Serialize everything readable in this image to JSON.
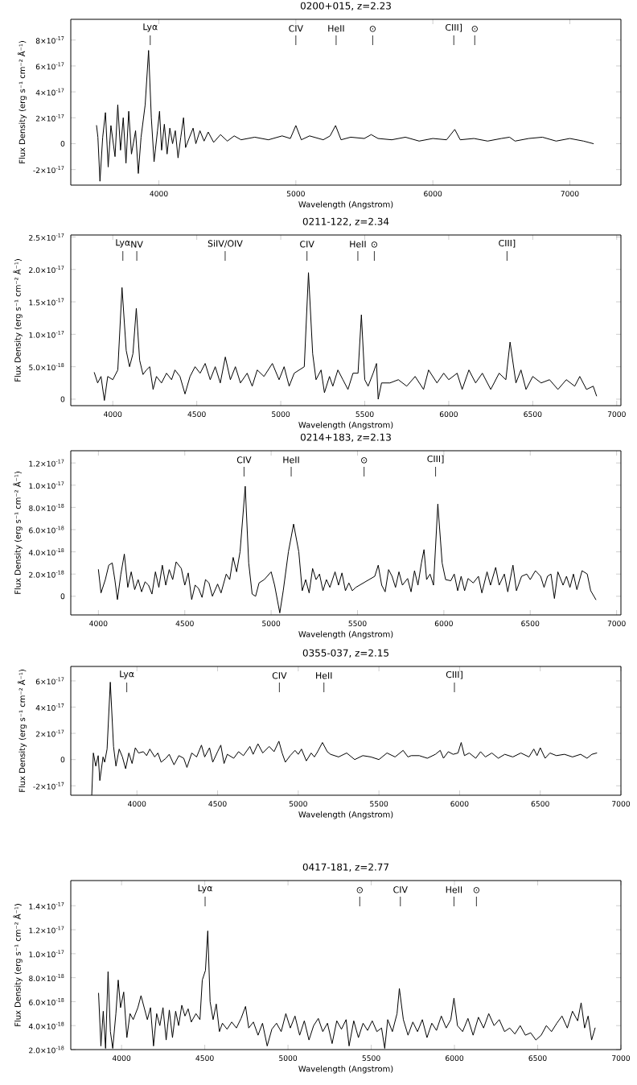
{
  "chart_data": [
    {
      "type": "line",
      "title": "0200+015, z=2.23",
      "xlabel": "Wavelength (Angstrom)",
      "ylabel": "Flux Density (erg s⁻¹ cm⁻² Å⁻¹)",
      "color": "#000000",
      "x": [
        3545,
        3555,
        3570,
        3590,
        3610,
        3630,
        3650,
        3680,
        3700,
        3720,
        3740,
        3760,
        3780,
        3800,
        3830,
        3850,
        3870,
        3900,
        3925,
        3945,
        3965,
        3990,
        4005,
        4020,
        4040,
        4060,
        4080,
        4100,
        4120,
        4140,
        4160,
        4180,
        4195,
        4220,
        4250,
        4270,
        4300,
        4330,
        4360,
        4400,
        4450,
        4500,
        4550,
        4600,
        4700,
        4800,
        4900,
        4960,
        5000,
        5040,
        5100,
        5200,
        5250,
        5290,
        5330,
        5400,
        5500,
        5550,
        5600,
        5700,
        5800,
        5900,
        6000,
        6100,
        6160,
        6200,
        6300,
        6400,
        6500,
        6560,
        6600,
        6700,
        6800,
        6900,
        7000,
        7100,
        7172
      ],
      "values": [
        1.4e-17,
        5e-18,
        -2.9e-17,
        5e-18,
        2.4e-17,
        -1.8e-17,
        1.4e-17,
        -1e-17,
        3e-17,
        -5e-18,
        2e-17,
        -1.5e-17,
        2.5e-17,
        -8e-18,
        1e-17,
        -2.3e-17,
        5e-18,
        3e-17,
        7.2e-17,
        2e-17,
        -1.4e-17,
        1e-17,
        2.5e-17,
        -5e-18,
        1.5e-17,
        -8e-18,
        1.2e-17,
        0.0,
        1e-17,
        -1.1e-17,
        5e-18,
        2e-17,
        -3e-18,
        4e-18,
        1.2e-17,
        0.0,
        1e-17,
        2e-18,
        9e-18,
        1e-18,
        7e-18,
        2e-18,
        6e-18,
        3e-18,
        5e-18,
        3e-18,
        6e-18,
        4e-18,
        1.4e-17,
        3e-18,
        6e-18,
        3e-18,
        6e-18,
        1.4e-17,
        3e-18,
        5e-18,
        4e-18,
        7e-18,
        4e-18,
        3e-18,
        5e-18,
        2e-18,
        4e-18,
        3e-18,
        1.1e-17,
        3e-18,
        4e-18,
        2e-18,
        4e-18,
        5e-18,
        2e-18,
        4e-18,
        5e-18,
        2e-18,
        4e-18,
        2e-18,
        0.0
      ],
      "xlim": [
        3357,
        7373
      ],
      "ylim": [
        -3.2e-17,
        9.6e-17
      ],
      "xticks": [
        4000,
        5000,
        6000,
        7000
      ],
      "yticks": [
        {
          "value": -2e-17,
          "label": "-2×10$^{-17}$"
        },
        0,
        {
          "value": 2e-17,
          "label": "2×10$^{-17}$"
        },
        {
          "value": 4e-17,
          "label": "4×10$^{-17}$"
        },
        {
          "value": 6e-17,
          "label": "6×10$^{-17}$"
        },
        {
          "value": 8e-17,
          "label": "8×10$^{-17}$"
        }
      ],
      "ref_lines": [
        {
          "axis": "x",
          "value": 3937,
          "label": "Lyα"
        },
        {
          "axis": "x",
          "value": 5000,
          "label": "CIV"
        },
        {
          "axis": "x",
          "value": 5294,
          "label": "HeII"
        },
        {
          "axis": "x",
          "value": 5561,
          "label": "⊙"
        },
        {
          "axis": "x",
          "value": 6153,
          "label": "CIII]"
        },
        {
          "axis": "x",
          "value": 6306,
          "label": "⊙"
        }
      ]
    },
    {
      "type": "line",
      "title": "0211-122, z=2.34",
      "xlabel": "Wavelength (Angstrom)",
      "ylabel": "Flux Density (erg s⁻¹ cm⁻² Å⁻¹)",
      "color": "#000000",
      "x": [
        3890,
        3910,
        3930,
        3950,
        3970,
        4000,
        4030,
        4055,
        4080,
        4100,
        4120,
        4140,
        4160,
        4180,
        4200,
        4220,
        4240,
        4260,
        4290,
        4320,
        4350,
        4370,
        4400,
        4430,
        4460,
        4490,
        4520,
        4550,
        4580,
        4610,
        4640,
        4670,
        4700,
        4730,
        4760,
        4800,
        4830,
        4860,
        4900,
        4950,
        4990,
        5020,
        5050,
        5080,
        5110,
        5140,
        5165,
        5190,
        5210,
        5240,
        5260,
        5290,
        5310,
        5340,
        5370,
        5400,
        5430,
        5460,
        5480,
        5500,
        5520,
        5550,
        5570,
        5580,
        5600,
        5650,
        5700,
        5750,
        5800,
        5850,
        5880,
        5930,
        5970,
        6000,
        6050,
        6080,
        6120,
        6160,
        6200,
        6250,
        6300,
        6340,
        6365,
        6400,
        6430,
        6460,
        6500,
        6550,
        6600,
        6650,
        6700,
        6750,
        6780,
        6820,
        6860,
        6880
      ],
      "values": [
        4.1e-18,
        2.5e-18,
        3.5e-18,
        -2e-19,
        3.5e-18,
        3e-18,
        4.5e-18,
        1.72e-17,
        7.5e-18,
        5e-18,
        7e-18,
        1.4e-17,
        6e-18,
        3.8e-18,
        4.5e-18,
        5e-18,
        1.5e-18,
        3.5e-18,
        2.5e-18,
        4e-18,
        3e-18,
        4.5e-18,
        3.5e-18,
        8e-19,
        3.5e-18,
        5e-18,
        4e-18,
        5.5e-18,
        3e-18,
        5e-18,
        2.5e-18,
        6.5e-18,
        3e-18,
        5e-18,
        2.5e-18,
        4e-18,
        2e-18,
        4.5e-18,
        3.5e-18,
        5.5e-18,
        3e-18,
        5e-18,
        2e-18,
        4e-18,
        4.5e-18,
        5e-18,
        1.95e-17,
        7e-18,
        3e-18,
        4.5e-18,
        1e-18,
        3.5e-18,
        2e-18,
        4.5e-18,
        3e-18,
        1.5e-18,
        4e-18,
        4e-18,
        1.3e-17,
        3e-18,
        2e-18,
        4e-18,
        5.5e-18,
        0.0,
        2.5e-18,
        2.5e-18,
        3e-18,
        2e-18,
        3.5e-18,
        1.5e-18,
        4.5e-18,
        2.5e-18,
        4e-18,
        3e-18,
        4e-18,
        1.5e-18,
        4.5e-18,
        2.5e-18,
        4e-18,
        1.5e-18,
        4e-18,
        3e-18,
        8.8e-18,
        2.5e-18,
        4.5e-18,
        1.5e-18,
        3.5e-18,
        2.5e-18,
        3e-18,
        1.5e-18,
        3e-18,
        2e-18,
        3.5e-18,
        1.5e-18,
        2e-18,
        5e-19
      ],
      "xlim": [
        3750,
        7025
      ],
      "ylim": [
        -1e-18,
        2.53e-17
      ],
      "xticks": [
        4000,
        4500,
        5000,
        5500,
        6000,
        6500,
        7000
      ],
      "yticks": [
        0,
        {
          "value": 5e-18,
          "label": "5.0×10$^{-18}$"
        },
        {
          "value": 1e-17,
          "label": "1.0×10$^{-17}$"
        },
        {
          "value": 1.5e-17,
          "label": "1.5×10$^{-17}$"
        },
        {
          "value": 2e-17,
          "label": "2.0×10$^{-17}$"
        },
        {
          "value": 2.5e-17,
          "label": "2.5×10$^{-17}$"
        }
      ],
      "ref_lines": [
        {
          "axis": "x",
          "value": 4060,
          "label": "Lyα"
        },
        {
          "axis": "x",
          "value": 4143,
          "label": "NV"
        },
        {
          "axis": "x",
          "value": 4669,
          "label": "SiIV/OIV"
        },
        {
          "axis": "x",
          "value": 5156,
          "label": "CIV"
        },
        {
          "axis": "x",
          "value": 5459,
          "label": "HeII"
        },
        {
          "axis": "x",
          "value": 5557,
          "label": "⊙"
        },
        {
          "axis": "x",
          "value": 6347,
          "label": "CIII]"
        }
      ]
    },
    {
      "type": "line",
      "title": "0214+183, z=2.13",
      "xlabel": "Wavelength (Angstrom)",
      "ylabel": "Flux Density (erg s⁻¹ cm⁻² Å⁻¹)",
      "color": "#000000",
      "x": [
        4000,
        4015,
        4040,
        4060,
        4080,
        4095,
        4110,
        4130,
        4150,
        4170,
        4190,
        4210,
        4230,
        4250,
        4270,
        4290,
        4310,
        4330,
        4350,
        4370,
        4390,
        4410,
        4430,
        4450,
        4480,
        4500,
        4520,
        4540,
        4560,
        4580,
        4600,
        4620,
        4640,
        4660,
        4690,
        4710,
        4740,
        4760,
        4780,
        4800,
        4820,
        4850,
        4870,
        4890,
        4910,
        4930,
        4960,
        5000,
        5020,
        5050,
        5070,
        5100,
        5130,
        5160,
        5180,
        5200,
        5220,
        5240,
        5260,
        5280,
        5300,
        5320,
        5340,
        5370,
        5390,
        5410,
        5430,
        5450,
        5470,
        5490,
        5600,
        5620,
        5640,
        5660,
        5680,
        5700,
        5720,
        5740,
        5760,
        5790,
        5810,
        5830,
        5850,
        5870,
        5885,
        5900,
        5920,
        5940,
        5965,
        5990,
        6010,
        6040,
        6060,
        6080,
        6100,
        6120,
        6140,
        6170,
        6200,
        6220,
        6250,
        6270,
        6300,
        6320,
        6350,
        6370,
        6400,
        6420,
        6450,
        6480,
        6500,
        6530,
        6560,
        6580,
        6600,
        6620,
        6640,
        6660,
        6690,
        6710,
        6730,
        6750,
        6770,
        6800,
        6830,
        6850,
        6880
      ],
      "values": [
        2.4e-18,
        3e-19,
        1.5e-18,
        2.8e-18,
        3e-18,
        1.5e-18,
        -3e-19,
        2e-18,
        3.8e-18,
        8e-19,
        2.2e-18,
        6e-19,
        1.5e-18,
        4e-19,
        1.3e-18,
        1e-18,
        2e-19,
        2.2e-18,
        8e-19,
        2.8e-18,
        1e-18,
        2.4e-18,
        1.5e-18,
        3.1e-18,
        2.5e-18,
        1e-18,
        2.1e-18,
        -3e-19,
        1e-18,
        7e-19,
        -1e-19,
        1.5e-18,
        1.2e-18,
        0.0,
        1.1e-18,
        3e-19,
        2e-18,
        1.5e-18,
        3.5e-18,
        2.2e-18,
        4e-18,
        9.9e-18,
        3e-18,
        2e-19,
        0.0,
        1.2e-18,
        1.5e-18,
        2.2e-18,
        1e-18,
        -1.5e-18,
        5e-19,
        4e-18,
        6.5e-18,
        4e-18,
        5e-19,
        1.5e-18,
        3e-19,
        2.5e-18,
        1.5e-18,
        2e-18,
        5e-19,
        1.5e-18,
        8e-19,
        2.2e-18,
        1e-18,
        2.1e-18,
        5e-19,
        1.2e-18,
        5e-19,
        8e-19,
        1.8e-18,
        2.8e-18,
        1e-18,
        4e-19,
        2.4e-18,
        1.8e-18,
        8e-19,
        2.2e-18,
        1e-18,
        1.6e-18,
        4e-19,
        2.3e-18,
        1e-18,
        3e-18,
        4.2e-18,
        1.5e-18,
        2e-18,
        1e-18,
        8.3e-18,
        3e-18,
        1.5e-18,
        1.4e-18,
        2e-18,
        5e-19,
        1.8e-18,
        5e-19,
        1.6e-18,
        1.2e-18,
        1.8e-18,
        3e-19,
        2.2e-18,
        1e-18,
        2.6e-18,
        1e-18,
        2e-18,
        4e-19,
        2.8e-18,
        5e-19,
        1.8e-18,
        2e-18,
        1.5e-18,
        2.3e-18,
        1.8e-18,
        8e-19,
        1.8e-18,
        2e-18,
        -2e-19,
        2.2e-18,
        1e-18,
        1.8e-18,
        8e-19,
        2e-18,
        6e-19,
        2.3e-18,
        2e-18,
        5e-19,
        -3e-19
      ],
      "xlim": [
        3840,
        7025
      ],
      "ylim": [
        -1.68e-18,
        1.31e-17
      ],
      "xticks": [
        4000,
        4500,
        5000,
        5500,
        6000,
        6500,
        7000
      ],
      "yticks": [
        0,
        {
          "value": 2e-18,
          "label": "2.0×10$^{-18}$"
        },
        {
          "value": 4e-18,
          "label": "4.0×10$^{-18}$"
        },
        {
          "value": 6e-18,
          "label": "6.0×10$^{-18}$"
        },
        {
          "value": 8e-18,
          "label": "8.0×10$^{-18}$"
        },
        {
          "value": 1e-17,
          "label": "1.0×10$^{-17}$"
        },
        {
          "value": 1.2e-17,
          "label": "1.2×10$^{-17}$"
        }
      ],
      "ref_lines": [
        {
          "axis": "x",
          "value": 4843,
          "label": "CIV"
        },
        {
          "axis": "x",
          "value": 5116,
          "label": "HeII"
        },
        {
          "axis": "x",
          "value": 5538,
          "label": "⊙"
        },
        {
          "axis": "x",
          "value": 5952,
          "label": "CIII]"
        }
      ]
    },
    {
      "type": "line",
      "title": "0355-037, z=2.15",
      "xlabel": "Wavelength (Angstrom)",
      "ylabel": "Flux Density (erg s⁻¹ cm⁻² Å⁻¹)",
      "color": "#000000",
      "x": [
        3720,
        3730,
        3745,
        3760,
        3770,
        3790,
        3800,
        3815,
        3835,
        3855,
        3870,
        3890,
        3910,
        3930,
        3950,
        3970,
        3990,
        4010,
        4040,
        4060,
        4080,
        4110,
        4130,
        4150,
        4180,
        4200,
        4230,
        4260,
        4290,
        4310,
        4340,
        4370,
        4400,
        4420,
        4450,
        4470,
        4500,
        4520,
        4540,
        4560,
        4600,
        4630,
        4660,
        4700,
        4720,
        4750,
        4780,
        4820,
        4850,
        4880,
        4900,
        4920,
        4950,
        4980,
        5000,
        5020,
        5050,
        5080,
        5100,
        5120,
        5150,
        5180,
        5200,
        5250,
        5300,
        5350,
        5400,
        5450,
        5500,
        5550,
        5600,
        5650,
        5680,
        5700,
        5750,
        5800,
        5850,
        5880,
        5900,
        5930,
        5960,
        5990,
        6010,
        6030,
        6060,
        6100,
        6130,
        6160,
        6200,
        6240,
        6280,
        6330,
        6380,
        6430,
        6460,
        6480,
        6500,
        6530,
        6560,
        6600,
        6650,
        6700,
        6750,
        6790,
        6820,
        6850
      ],
      "values": [
        -2.7e-17,
        5e-18,
        -5e-18,
        3e-18,
        -1.6e-17,
        2e-18,
        -2e-18,
        8e-18,
        5.9e-17,
        1e-17,
        -5e-18,
        8e-18,
        2e-18,
        -7e-18,
        5e-18,
        -3e-18,
        9e-18,
        5e-18,
        6e-18,
        3e-18,
        8e-18,
        2e-18,
        5e-18,
        -2e-18,
        1e-18,
        4e-18,
        -4e-18,
        3e-18,
        1e-18,
        -6e-18,
        5e-18,
        2e-18,
        1.1e-17,
        2e-18,
        9e-18,
        -2e-18,
        6e-18,
        1.1e-17,
        -3e-18,
        4e-18,
        1e-18,
        6e-18,
        3e-18,
        1e-17,
        4e-18,
        1.2e-17,
        5e-18,
        1e-17,
        6e-18,
        1.4e-17,
        5e-18,
        -2e-18,
        3e-18,
        7e-18,
        4e-18,
        8e-18,
        -1e-18,
        5e-18,
        2e-18,
        6e-18,
        1.3e-17,
        6e-18,
        4e-18,
        2e-18,
        5e-18,
        0.0,
        3e-18,
        2e-18,
        0.0,
        5e-18,
        2e-18,
        7e-18,
        2e-18,
        3e-18,
        3e-18,
        1e-18,
        4e-18,
        7e-18,
        1e-18,
        6e-18,
        4e-18,
        5e-18,
        1.3e-17,
        3e-18,
        5e-18,
        1e-18,
        6e-18,
        2e-18,
        5e-18,
        1e-18,
        4e-18,
        2e-18,
        5e-18,
        2e-18,
        8e-18,
        3e-18,
        9e-18,
        1e-18,
        5e-18,
        3e-18,
        4e-18,
        2e-18,
        4e-18,
        1e-18,
        4e-18,
        5e-18
      ],
      "xlim": [
        3590,
        7000
      ],
      "ylim": [
        -2.72e-17,
        7.1e-17
      ],
      "xticks": [
        4000,
        4500,
        5000,
        5500,
        6000,
        6500,
        7000
      ],
      "yticks": [
        {
          "value": -2e-17,
          "label": "-2×10$^{-17}$"
        },
        0,
        {
          "value": 2e-17,
          "label": "2×10$^{-17}$"
        },
        {
          "value": 4e-17,
          "label": "4×10$^{-17}$"
        },
        {
          "value": 6e-17,
          "label": "6×10$^{-17}$"
        }
      ],
      "ref_lines": [
        {
          "axis": "x",
          "value": 3937,
          "label": "Lyα"
        },
        {
          "axis": "x",
          "value": 4883,
          "label": "CIV"
        },
        {
          "axis": "x",
          "value": 5159,
          "label": "HeII"
        },
        {
          "axis": "x",
          "value": 5968,
          "label": "CIII]"
        }
      ]
    },
    {
      "type": "line",
      "title": "0417-181, z=2.77",
      "xlabel": "Wavelength (Angstrom)",
      "ylabel": "Flux Density (erg s⁻¹ cm⁻² Å⁻¹)",
      "color": "#000000",
      "x": [
        3862,
        3876,
        3890,
        3904,
        3919,
        3933,
        3947,
        3966,
        3980,
        3994,
        4013,
        4032,
        4051,
        4070,
        4098,
        4117,
        4136,
        4155,
        4174,
        4192,
        4211,
        4230,
        4249,
        4268,
        4287,
        4306,
        4325,
        4343,
        4362,
        4381,
        4400,
        4419,
        4447,
        4471,
        4485,
        4504,
        4518,
        4532,
        4550,
        4569,
        4588,
        4606,
        4634,
        4662,
        4690,
        4718,
        4745,
        4764,
        4792,
        4820,
        4847,
        4875,
        4903,
        4931,
        4959,
        4987,
        5014,
        5042,
        5070,
        5098,
        5126,
        5154,
        5182,
        5209,
        5237,
        5265,
        5293,
        5321,
        5349,
        5367,
        5395,
        5423,
        5451,
        5478,
        5506,
        5534,
        5562,
        5581,
        5599,
        5627,
        5655,
        5669,
        5693,
        5721,
        5750,
        5778,
        5807,
        5835,
        5864,
        5892,
        5921,
        5950,
        5978,
        5997,
        6018,
        6049,
        6081,
        6112,
        6144,
        6175,
        6206,
        6238,
        6269,
        6301,
        6332,
        6363,
        6395,
        6426,
        6458,
        6489,
        6521,
        6552,
        6583,
        6615,
        6646,
        6678,
        6709,
        6740,
        6761,
        6782,
        6803,
        6824,
        6845
      ],
      "values": [
        6.7e-18,
        2.3e-18,
        5.2e-18,
        2.1e-18,
        8.5e-18,
        3.5e-18,
        2.1e-18,
        5e-18,
        7.8e-18,
        5.5e-18,
        6.8e-18,
        3e-18,
        5e-18,
        4.5e-18,
        5.5e-18,
        6.5e-18,
        5.5e-18,
        4.5e-18,
        5.5e-18,
        2.3e-18,
        5e-18,
        4e-18,
        5.5e-18,
        2.8e-18,
        5.3e-18,
        3e-18,
        5.2e-18,
        4e-18,
        5.7e-18,
        4.8e-18,
        5.4e-18,
        4.3e-18,
        5e-18,
        4.5e-18,
        7.8e-18,
        8.6e-18,
        1.19e-17,
        6e-18,
        4.5e-18,
        5.8e-18,
        3.5e-18,
        4.2e-18,
        3.7e-18,
        4.3e-18,
        3.8e-18,
        4.6e-18,
        5.6e-18,
        3.8e-18,
        4.3e-18,
        3.2e-18,
        4.2e-18,
        2.3e-18,
        3.7e-18,
        4.2e-18,
        3.5e-18,
        5e-18,
        3.8e-18,
        4.8e-18,
        3.2e-18,
        4.4e-18,
        2.8e-18,
        4e-18,
        4.6e-18,
        3.5e-18,
        4.2e-18,
        2.5e-18,
        4.4e-18,
        3.7e-18,
        4.5e-18,
        2.3e-18,
        4.4e-18,
        3e-18,
        4.2e-18,
        3.6e-18,
        4.4e-18,
        3.5e-18,
        3.8e-18,
        2.1e-18,
        4.5e-18,
        3.5e-18,
        5e-18,
        7.1e-18,
        4.5e-18,
        3.2e-18,
        4.3e-18,
        3.5e-18,
        4.5e-18,
        3e-18,
        4.2e-18,
        3.6e-18,
        4.8e-18,
        3.8e-18,
        4.5e-18,
        6.3e-18,
        4e-18,
        3.5e-18,
        4.6e-18,
        3.2e-18,
        4.7e-18,
        3.8e-18,
        5e-18,
        4e-18,
        4.5e-18,
        3.5e-18,
        3.8e-18,
        3.3e-18,
        4e-18,
        3.2e-18,
        3.4e-18,
        2.8e-18,
        3.2e-18,
        4e-18,
        3.5e-18,
        4.2e-18,
        4.8e-18,
        3.8e-18,
        5.2e-18,
        4.4e-18,
        5.9e-18,
        3.8e-18,
        4.8e-18,
        2.8e-18,
        3.8e-18
      ],
      "xlim": [
        3695,
        7000
      ],
      "ylim": [
        2e-18,
        1.61e-17
      ],
      "xticks": [
        4000,
        4500,
        5000,
        5500,
        6000,
        6500,
        7000
      ],
      "yticks": [
        {
          "value": 2e-18,
          "label": "2.0×10$^{-18}$"
        },
        {
          "value": 4e-18,
          "label": "4.0×10$^{-18}$"
        },
        {
          "value": 6e-18,
          "label": "6.0×10$^{-18}$"
        },
        {
          "value": 8e-18,
          "label": "8.0×10$^{-18}$"
        },
        {
          "value": 1e-17,
          "label": "1.0×10$^{-17}$"
        },
        {
          "value": 1.2e-17,
          "label": "1.2×10$^{-17}$"
        },
        {
          "value": 1.4e-17,
          "label": "1.4×10$^{-17}$"
        }
      ],
      "ref_lines": [
        {
          "axis": "x",
          "value": 4502,
          "label": "Lyα"
        },
        {
          "axis": "x",
          "value": 5431,
          "label": "⊙"
        },
        {
          "axis": "x",
          "value": 5675,
          "label": "CIV"
        },
        {
          "axis": "x",
          "value": 5997,
          "label": "HeII"
        },
        {
          "axis": "x",
          "value": 6132,
          "label": "⊙"
        }
      ]
    }
  ]
}
